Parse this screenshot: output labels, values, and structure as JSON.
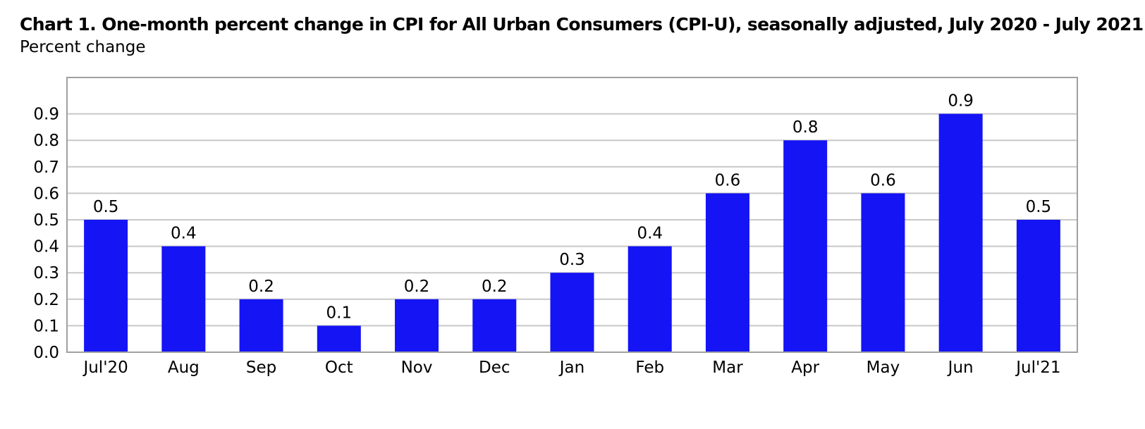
{
  "chart_data": {
    "type": "bar",
    "title": "Chart 1. One-month percent change in CPI for All Urban Consumers (CPI-U), seasonally adjusted, July 2020 - July 2021",
    "ylabel": "Percent change",
    "xlabel": "",
    "categories": [
      "Jul'20",
      "Aug",
      "Sep",
      "Oct",
      "Nov",
      "Dec",
      "Jan",
      "Feb",
      "Mar",
      "Apr",
      "May",
      "Jun",
      "Jul'21"
    ],
    "values": [
      0.5,
      0.4,
      0.2,
      0.1,
      0.2,
      0.2,
      0.3,
      0.4,
      0.6,
      0.8,
      0.6,
      0.9,
      0.5
    ],
    "data_labels": [
      "0.5",
      "0.4",
      "0.2",
      "0.1",
      "0.2",
      "0.2",
      "0.3",
      "0.4",
      "0.6",
      "0.8",
      "0.6",
      "0.9",
      "0.5"
    ],
    "y_ticks": [
      "0.0",
      "0.1",
      "0.2",
      "0.3",
      "0.4",
      "0.5",
      "0.6",
      "0.7",
      "0.8",
      "0.9"
    ],
    "ylim": [
      0,
      1.0
    ],
    "grid": true,
    "legend": "none",
    "bar_color": "#1414f5",
    "grid_color": "#c8c8c8",
    "frame_color": "#a0a0a0"
  }
}
